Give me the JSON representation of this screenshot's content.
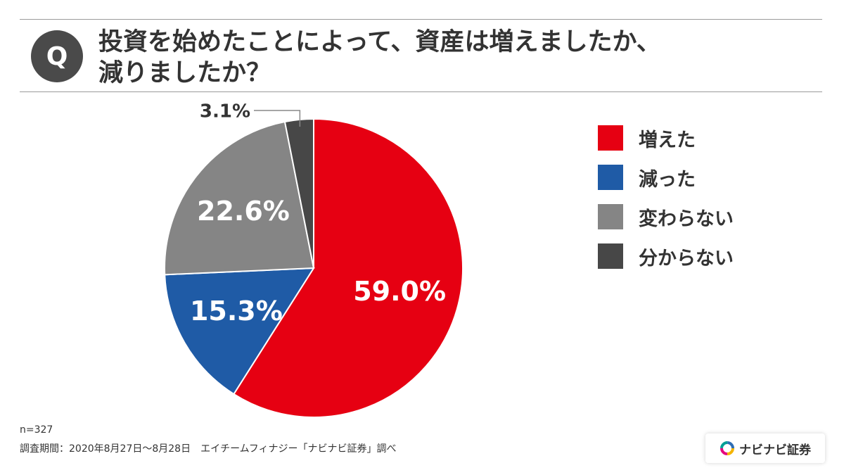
{
  "header": {
    "badge": "Q",
    "question_line1": "投資を始めたことによって、資産は増えましたか、",
    "question_line2": "減りましたか？"
  },
  "chart_data": {
    "type": "pie",
    "categories": [
      "増えた",
      "減った",
      "変わらない",
      "分からない"
    ],
    "values": [
      59.0,
      15.3,
      22.6,
      3.1
    ],
    "value_labels": [
      "59.0%",
      "15.3%",
      "22.6%",
      "3.1%"
    ],
    "colors": [
      "#e60012",
      "#1f5ba6",
      "#858585",
      "#474747"
    ],
    "legend_position": "right",
    "start_angle": "top, clockwise"
  },
  "footer": {
    "sample": "n=327",
    "period": "調査期間：2020年8月27日～8月28日　エイチームフィナジー「ナビナビ証券」調べ",
    "logo": "ナビナビ証券",
    "logo_icon": "ring-icon"
  }
}
